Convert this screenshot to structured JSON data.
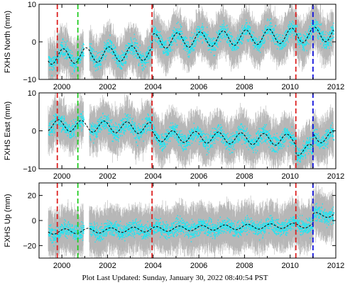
{
  "footer": {
    "text": "Plot Last Updated:   Sunday, January 30, 2022 08:40:54 PST"
  },
  "colors": {
    "error_bar": "#aaaaaa",
    "data": "#22e5f2",
    "model": "#000000",
    "red_line": "#dd2222",
    "green_line": "#22cc22",
    "blue_line": "#1111dd"
  },
  "chart_data": [
    {
      "type": "scatter",
      "ylabel": "FXHS North (mm)",
      "xlim": [
        1999.0,
        2012.0
      ],
      "ylim": [
        -10,
        10
      ],
      "xticks": [
        2000,
        2002,
        2004,
        2006,
        2008,
        2010,
        2012
      ],
      "xticklabels": [
        "2000",
        "2002",
        "2004",
        "2006",
        "2008",
        "2010",
        "2012"
      ],
      "yticks": [
        -10,
        0,
        10
      ],
      "yticklabels": [
        "−10",
        "0",
        "10"
      ],
      "data_range": [
        1999.4,
        2011.9
      ],
      "model": {
        "base": -4.0,
        "trend_per_year": 0.25,
        "annual_amplitude": 2.0,
        "annual_phase": 1.2,
        "offsets": [
          [
            2003.95,
            3.0
          ]
        ]
      },
      "scatter_half_width": 2.2,
      "error_half_width": 4.5,
      "vertical_lines": [
        {
          "x": 1999.8,
          "color": "red"
        },
        {
          "x": 2000.7,
          "color": "green"
        },
        {
          "x": 2003.95,
          "color": "red"
        },
        {
          "x": 2010.25,
          "color": "red"
        },
        {
          "x": 2011.0,
          "color": "blue"
        }
      ]
    },
    {
      "type": "scatter",
      "ylabel": "FXHS East (mm)",
      "xlim": [
        1999.0,
        2012.0
      ],
      "ylim": [
        -10,
        10
      ],
      "xticks": [
        2000,
        2002,
        2004,
        2006,
        2008,
        2010,
        2012
      ],
      "xticklabels": [
        "2000",
        "2002",
        "2004",
        "2006",
        "2008",
        "2010",
        "2012"
      ],
      "yticks": [
        -10,
        0,
        10
      ],
      "yticklabels": [
        "−10",
        "0",
        "10"
      ],
      "data_range": [
        1999.4,
        2011.9
      ],
      "model": {
        "base": 1.5,
        "trend_per_year": -0.18,
        "annual_amplitude": 1.5,
        "annual_phase": 2.5,
        "offsets": [
          [
            2003.95,
            -2.0
          ],
          [
            2010.25,
            -2.5
          ],
          [
            2011.0,
            3.5
          ]
        ]
      },
      "scatter_half_width": 2.2,
      "error_half_width": 4.5,
      "vertical_lines": [
        {
          "x": 1999.8,
          "color": "red"
        },
        {
          "x": 2000.7,
          "color": "green"
        },
        {
          "x": 2003.95,
          "color": "red"
        },
        {
          "x": 2010.25,
          "color": "red"
        },
        {
          "x": 2011.0,
          "color": "blue"
        }
      ]
    },
    {
      "type": "scatter",
      "ylabel": "FXHS Up (mm)",
      "xlim": [
        1999.0,
        2012.0
      ],
      "ylim": [
        -30,
        30
      ],
      "xticks": [
        2000,
        2002,
        2004,
        2006,
        2008,
        2010,
        2012
      ],
      "xticklabels": [
        "2000",
        "2002",
        "2004",
        "2006",
        "2008",
        "2010",
        "2012"
      ],
      "yticks": [
        -20,
        0,
        20
      ],
      "yticklabels": [
        "−20",
        "0",
        "20"
      ],
      "data_range": [
        1999.4,
        2011.9
      ],
      "model": {
        "base": -9.0,
        "trend_per_year": 0.45,
        "annual_amplitude": 2.0,
        "annual_phase": 0.7,
        "offsets": [
          [
            2011.0,
            8.0
          ]
        ]
      },
      "scatter_half_width": 6.0,
      "error_half_width": 14.0,
      "vertical_lines": [
        {
          "x": 1999.8,
          "color": "red"
        },
        {
          "x": 2000.7,
          "color": "green"
        },
        {
          "x": 2003.95,
          "color": "red"
        },
        {
          "x": 2010.25,
          "color": "red"
        },
        {
          "x": 2011.0,
          "color": "blue"
        }
      ]
    }
  ]
}
